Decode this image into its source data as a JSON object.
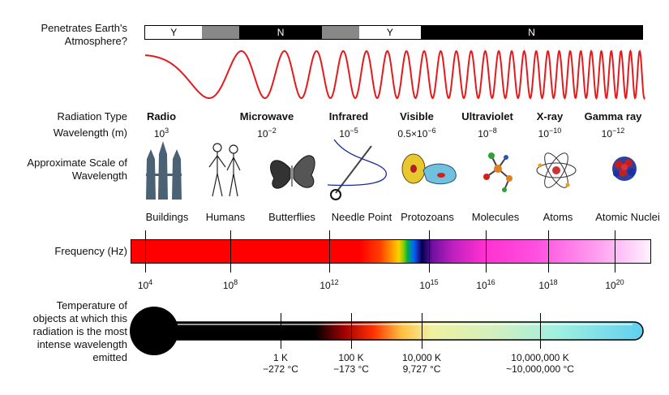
{
  "labels": {
    "penetrates": "Penetrates Earth's Atmosphere?",
    "radiation_type": "Radiation Type",
    "wavelength": "Wavelength (m)",
    "scale": "Approximate Scale of Wavelength",
    "frequency": "Frequency (Hz)",
    "temperature": "Temperature of objects at which this radiation is the most intense wavelength emitted"
  },
  "atmosphere": [
    {
      "text": "Y",
      "color": "#ffffff",
      "fraction": 0.115
    },
    {
      "text": "",
      "color": "#888888",
      "fraction": 0.075
    },
    {
      "text": "N",
      "color": "#000000",
      "fraction": 0.165
    },
    {
      "text": "",
      "color": "#888888",
      "fraction": 0.075
    },
    {
      "text": "Y",
      "color": "#ffffff",
      "fraction": 0.125
    },
    {
      "text": "N",
      "color": "#000000",
      "fraction": 0.445
    }
  ],
  "wave_color": "#e41a1c",
  "radiation_types": [
    {
      "name": "Radio",
      "wavelength_base": "10",
      "wavelength_exp": "3"
    },
    {
      "name": "Microwave",
      "wavelength_base": "10",
      "wavelength_exp": "−2"
    },
    {
      "name": "Infrared",
      "wavelength_base": "10",
      "wavelength_exp": "−5"
    },
    {
      "name": "Visible",
      "wavelength_base": "0.5×10",
      "wavelength_exp": "−6"
    },
    {
      "name": "Ultraviolet",
      "wavelength_base": "10",
      "wavelength_exp": "−8"
    },
    {
      "name": "X-ray",
      "wavelength_base": "10",
      "wavelength_exp": "−10"
    },
    {
      "name": "Gamma ray",
      "wavelength_base": "10",
      "wavelength_exp": "−12"
    }
  ],
  "scale_items": [
    {
      "label": "Buildings",
      "icon": "buildings-icon"
    },
    {
      "label": "Humans",
      "icon": "humans-icon"
    },
    {
      "label": "Butterflies",
      "icon": "butterfly-icon"
    },
    {
      "label": "Needle Point",
      "icon": "needle-icon"
    },
    {
      "label": "Protozoans",
      "icon": "protozoan-icon"
    },
    {
      "label": "Molecules",
      "icon": "molecule-icon"
    },
    {
      "label": "Atoms",
      "icon": "atom-icon"
    },
    {
      "label": "Atomic Nuclei",
      "icon": "nucleus-icon"
    }
  ],
  "frequencies": [
    {
      "base": "10",
      "exp": "4"
    },
    {
      "base": "10",
      "exp": "8"
    },
    {
      "base": "10",
      "exp": "12"
    },
    {
      "base": "10",
      "exp": "15"
    },
    {
      "base": "10",
      "exp": "16"
    },
    {
      "base": "10",
      "exp": "18"
    },
    {
      "base": "10",
      "exp": "20"
    }
  ],
  "temperatures": [
    {
      "kelvin": "1 K",
      "celsius": "−272 °C"
    },
    {
      "kelvin": "100 K",
      "celsius": "−173 °C"
    },
    {
      "kelvin": "10,000 K",
      "celsius": "9,727 °C"
    },
    {
      "kelvin": "10,000,000 K",
      "celsius": "~10,000,000 °C"
    }
  ]
}
